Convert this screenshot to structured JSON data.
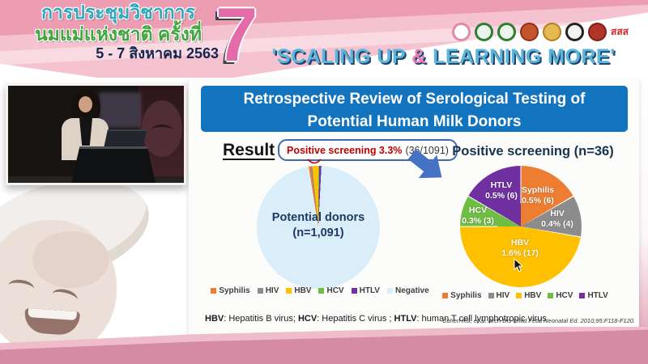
{
  "banner": {
    "title_line1": "การประชุมวิชาการ",
    "title_line2": "นมแม่แห่งชาติ ครั้งที่",
    "date_line": "5 - 7 สิงหาคม 2563",
    "edition_number": "7",
    "slogan_open": "'SCALING UP ",
    "slogan_amp": "&",
    "slogan_close": " LEARNING MORE'",
    "logos": [
      {
        "name": "breastfeeding-foundation-logo",
        "style": "ring",
        "color": "#e08aa8",
        "bg": "#ffffff"
      },
      {
        "name": "green-seal-logo-1",
        "style": "ring",
        "color": "#2f7d32",
        "bg": "#eaf4ea"
      },
      {
        "name": "green-seal-logo-2",
        "style": "ring",
        "color": "#2f7d32",
        "bg": "#eaf4ea"
      },
      {
        "name": "red-gold-emblem-logo",
        "style": "solid",
        "color": "#8f2d22",
        "bg": "#c4542c"
      },
      {
        "name": "royal-gold-emblem-logo",
        "style": "solid",
        "color": "#b07f22",
        "bg": "#e4b94f"
      },
      {
        "name": "black-seal-logo",
        "style": "ring",
        "color": "#222222",
        "bg": "#f2f2f2"
      },
      {
        "name": "dark-red-seal-logo",
        "style": "solid",
        "color": "#7e1f16",
        "bg": "#b03527"
      },
      {
        "name": "thaihealth-logo",
        "style": "text",
        "color": "#d8232a",
        "text": "สสส"
      }
    ],
    "colors": {
      "banner_pink": "#EC9DB2",
      "slogan_blue": "#59B7DC",
      "slogan_pink": "#E87FB4"
    }
  },
  "slide": {
    "title_line1": "Retrospective Review of Serological Testing of",
    "title_line2": "Potential Human Milk Donors",
    "result_label": "Result",
    "callout_highlight": "Positive screening 3.3%",
    "callout_detail": "(36/1091)",
    "left_pie_label_line1": "Potential donors",
    "left_pie_label_line2": "(n=1,091)",
    "right_pie_title": "Positive screening (n=36)",
    "footnote_parts": [
      {
        "text": "HBV",
        "bold": true
      },
      {
        "text": ": Hepatitis B virus; ",
        "bold": false
      },
      {
        "text": "HCV",
        "bold": true
      },
      {
        "text": ": Hepatitis C virus ; ",
        "bold": false
      },
      {
        "text": "HTLV",
        "bold": true
      },
      {
        "text": ": human T cell lymphotropic virus",
        "bold": false
      }
    ],
    "citation": "Cohen RS, et al. Arch Dis Child Fetal Neonatal Ed. 2010;95:F118-F120.",
    "colors": {
      "title_bar": "#1273BF",
      "arrow": "#4472C4",
      "highlight_red": "#C00000"
    }
  },
  "chart_data": [
    {
      "type": "pie",
      "title": "Potential donors (n=1,091)",
      "total": 1091,
      "start_angle": -9,
      "gap_deg": 0,
      "legend_position": "bottom",
      "labels_shown": false,
      "slices": [
        {
          "label": "Syphilis",
          "count": 6,
          "pct": "0.5%",
          "color": "#ED7D31"
        },
        {
          "label": "HIV",
          "count": 4,
          "pct": "0.4%",
          "color": "#8C8C8C"
        },
        {
          "label": "HBV",
          "count": 17,
          "pct": "1.6%",
          "color": "#FFC000"
        },
        {
          "label": "HCV",
          "count": 3,
          "pct": "0.3%",
          "color": "#6FBE44"
        },
        {
          "label": "HTLV",
          "count": 6,
          "pct": "0.5%",
          "color": "#7030A0"
        },
        {
          "label": "Negative",
          "count": 1055,
          "pct": "96.7%",
          "color": "#D9EEF8"
        }
      ]
    },
    {
      "type": "pie",
      "title": "Positive screening (n=36)",
      "total": 36,
      "start_angle": 0,
      "gap_deg": 1,
      "legend_position": "bottom",
      "labels_shown": true,
      "slices": [
        {
          "label": "Syphilis",
          "count": 6,
          "pct": "0.5%",
          "color": "#ED7D31"
        },
        {
          "label": "HIV",
          "count": 4,
          "pct": "0.4%",
          "color": "#8C8C8C"
        },
        {
          "label": "HBV",
          "count": 17,
          "pct": "1.6%",
          "color": "#FFC000"
        },
        {
          "label": "HCV",
          "count": 3,
          "pct": "0.3%",
          "color": "#6FBE44"
        },
        {
          "label": "HTLV",
          "count": 6,
          "pct": "0.5%",
          "color": "#7030A0"
        }
      ]
    }
  ]
}
